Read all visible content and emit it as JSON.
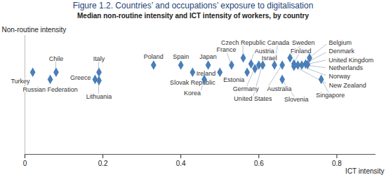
{
  "chart_data": {
    "type": "scatter",
    "title": "Figure 1.2. Countries’ and occupations’ exposure to digitalisation",
    "subtitle": "Median non-routine intensity and ICT intensity of workers, by country",
    "x_label": "ICT intensity",
    "y_label": "Non-routine intensity",
    "labels": [
      "Turkey",
      "Chile",
      "Russian Federation",
      "Greece",
      "Lithuania",
      "Italy",
      "Poland",
      "Slovak Republic",
      "Spain",
      "Japan",
      "Korea",
      "Ireland",
      "France",
      "Czech Republic",
      "Austria",
      "Estonia",
      "Israel",
      "Germany",
      "United States",
      "Canada",
      "Australia",
      "Slovenia",
      "Sweden",
      "Finland",
      "Belgium",
      "Denmark",
      "United Kingdom",
      "Netherlands",
      "Norway",
      "New Zealand",
      "Singapore"
    ],
    "x": [
      0.02,
      0.08,
      0.065,
      0.18,
      0.19,
      0.19,
      0.33,
      0.43,
      0.4,
      0.47,
      0.46,
      0.5,
      0.53,
      0.56,
      0.58,
      0.57,
      0.6,
      0.59,
      0.61,
      0.64,
      0.66,
      0.66,
      0.68,
      0.69,
      0.73,
      0.72,
      0.725,
      0.71,
      0.7,
      0.69,
      0.76
    ],
    "values": [
      0.69,
      0.69,
      0.63,
      0.63,
      0.62,
      0.69,
      0.75,
      0.69,
      0.75,
      0.75,
      0.63,
      0.69,
      0.75,
      0.81,
      0.76,
      0.69,
      0.75,
      0.72,
      0.75,
      0.75,
      0.75,
      0.63,
      0.81,
      0.76,
      0.81,
      0.76,
      0.755,
      0.75,
      0.75,
      0.74,
      0.63
    ],
    "color": "#4a7fb8",
    "marker": "diamond",
    "xlim": [
      0,
      0.9
    ],
    "xticks": [
      0,
      0.2,
      0.4,
      0.6,
      0.8
    ],
    "ylim": [
      0,
      1
    ],
    "tick_labels": "x",
    "grid": false
  }
}
